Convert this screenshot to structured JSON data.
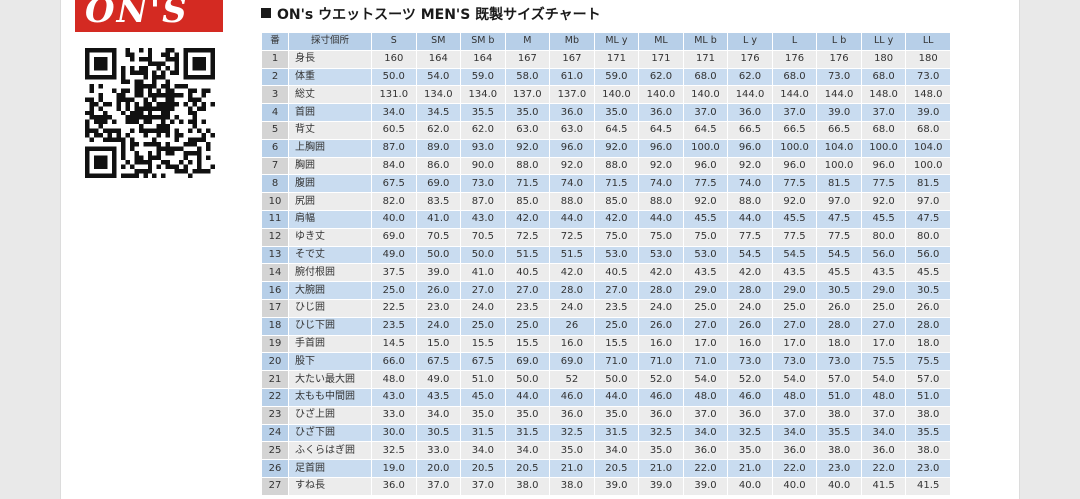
{
  "logo": {
    "text": "ON'S",
    "color": "#d42a22"
  },
  "title": "ON's ウエットスーツ MEN'S 既製サイズチャート",
  "table": {
    "headers": [
      "番",
      "採寸個所",
      "S",
      "SM",
      "SM b",
      "M",
      "Mb",
      "ML y",
      "ML",
      "ML b",
      "L y",
      "L",
      "L b",
      "LL y",
      "LL"
    ],
    "rows": [
      [
        "1",
        "身長",
        "160",
        "164",
        "164",
        "167",
        "167",
        "171",
        "171",
        "171",
        "176",
        "176",
        "176",
        "180",
        "180"
      ],
      [
        "2",
        "体重",
        "50.0",
        "54.0",
        "59.0",
        "58.0",
        "61.0",
        "59.0",
        "62.0",
        "68.0",
        "62.0",
        "68.0",
        "73.0",
        "68.0",
        "73.0"
      ],
      [
        "3",
        "総丈",
        "131.0",
        "134.0",
        "134.0",
        "137.0",
        "137.0",
        "140.0",
        "140.0",
        "140.0",
        "144.0",
        "144.0",
        "144.0",
        "148.0",
        "148.0"
      ],
      [
        "4",
        "首囲",
        "34.0",
        "34.5",
        "35.5",
        "35.0",
        "36.0",
        "35.0",
        "36.0",
        "37.0",
        "36.0",
        "37.0",
        "39.0",
        "37.0",
        "39.0"
      ],
      [
        "5",
        "背丈",
        "60.5",
        "62.0",
        "62.0",
        "63.0",
        "63.0",
        "64.5",
        "64.5",
        "64.5",
        "66.5",
        "66.5",
        "66.5",
        "68.0",
        "68.0"
      ],
      [
        "6",
        "上胸囲",
        "87.0",
        "89.0",
        "93.0",
        "92.0",
        "96.0",
        "92.0",
        "96.0",
        "100.0",
        "96.0",
        "100.0",
        "104.0",
        "100.0",
        "104.0"
      ],
      [
        "7",
        "胸囲",
        "84.0",
        "86.0",
        "90.0",
        "88.0",
        "92.0",
        "88.0",
        "92.0",
        "96.0",
        "92.0",
        "96.0",
        "100.0",
        "96.0",
        "100.0"
      ],
      [
        "8",
        "腹囲",
        "67.5",
        "69.0",
        "73.0",
        "71.5",
        "74.0",
        "71.5",
        "74.0",
        "77.5",
        "74.0",
        "77.5",
        "81.5",
        "77.5",
        "81.5"
      ],
      [
        "10",
        "尻囲",
        "82.0",
        "83.5",
        "87.0",
        "85.0",
        "88.0",
        "85.0",
        "88.0",
        "92.0",
        "88.0",
        "92.0",
        "97.0",
        "92.0",
        "97.0"
      ],
      [
        "11",
        "肩幅",
        "40.0",
        "41.0",
        "43.0",
        "42.0",
        "44.0",
        "42.0",
        "44.0",
        "45.5",
        "44.0",
        "45.5",
        "47.5",
        "45.5",
        "47.5"
      ],
      [
        "12",
        "ゆき丈",
        "69.0",
        "70.5",
        "70.5",
        "72.5",
        "72.5",
        "75.0",
        "75.0",
        "75.0",
        "77.5",
        "77.5",
        "77.5",
        "80.0",
        "80.0"
      ],
      [
        "13",
        "そで丈",
        "49.0",
        "50.0",
        "50.0",
        "51.5",
        "51.5",
        "53.0",
        "53.0",
        "53.0",
        "54.5",
        "54.5",
        "54.5",
        "56.0",
        "56.0"
      ],
      [
        "14",
        "腕付根囲",
        "37.5",
        "39.0",
        "41.0",
        "40.5",
        "42.0",
        "40.5",
        "42.0",
        "43.5",
        "42.0",
        "43.5",
        "45.5",
        "43.5",
        "45.5"
      ],
      [
        "16",
        "大腕囲",
        "25.0",
        "26.0",
        "27.0",
        "27.0",
        "28.0",
        "27.0",
        "28.0",
        "29.0",
        "28.0",
        "29.0",
        "30.5",
        "29.0",
        "30.5"
      ],
      [
        "17",
        "ひじ囲",
        "22.5",
        "23.0",
        "24.0",
        "23.5",
        "24.0",
        "23.5",
        "24.0",
        "25.0",
        "24.0",
        "25.0",
        "26.0",
        "25.0",
        "26.0"
      ],
      [
        "18",
        "ひじ下囲",
        "23.5",
        "24.0",
        "25.0",
        "25.0",
        "26",
        "25.0",
        "26.0",
        "27.0",
        "26.0",
        "27.0",
        "28.0",
        "27.0",
        "28.0"
      ],
      [
        "19",
        "手首囲",
        "14.5",
        "15.0",
        "15.5",
        "15.5",
        "16.0",
        "15.5",
        "16.0",
        "17.0",
        "16.0",
        "17.0",
        "18.0",
        "17.0",
        "18.0"
      ],
      [
        "20",
        "股下",
        "66.0",
        "67.5",
        "67.5",
        "69.0",
        "69.0",
        "71.0",
        "71.0",
        "71.0",
        "73.0",
        "73.0",
        "73.0",
        "75.5",
        "75.5"
      ],
      [
        "21",
        "大たい最大囲",
        "48.0",
        "49.0",
        "51.0",
        "50.0",
        "52",
        "50.0",
        "52.0",
        "54.0",
        "52.0",
        "54.0",
        "57.0",
        "54.0",
        "57.0"
      ],
      [
        "22",
        "太もも中間囲",
        "43.0",
        "43.5",
        "45.0",
        "44.0",
        "46.0",
        "44.0",
        "46.0",
        "48.0",
        "46.0",
        "48.0",
        "51.0",
        "48.0",
        "51.0"
      ],
      [
        "23",
        "ひざ上囲",
        "33.0",
        "34.0",
        "35.0",
        "35.0",
        "36.0",
        "35.0",
        "36.0",
        "37.0",
        "36.0",
        "37.0",
        "38.0",
        "37.0",
        "38.0"
      ],
      [
        "24",
        "ひざ下囲",
        "30.0",
        "30.5",
        "31.5",
        "31.5",
        "32.5",
        "31.5",
        "32.5",
        "34.0",
        "32.5",
        "34.0",
        "35.5",
        "34.0",
        "35.5"
      ],
      [
        "25",
        "ふくらはぎ囲",
        "32.5",
        "33.0",
        "34.0",
        "34.0",
        "35.0",
        "34.0",
        "35.0",
        "36.0",
        "35.0",
        "36.0",
        "38.0",
        "36.0",
        "38.0"
      ],
      [
        "26",
        "足首囲",
        "19.0",
        "20.0",
        "20.5",
        "20.5",
        "21.0",
        "20.5",
        "21.0",
        "22.0",
        "21.0",
        "22.0",
        "23.0",
        "22.0",
        "23.0"
      ],
      [
        "27",
        "すね長",
        "36.0",
        "37.0",
        "37.0",
        "38.0",
        "38.0",
        "39.0",
        "39.0",
        "39.0",
        "40.0",
        "40.0",
        "40.0",
        "41.5",
        "41.5"
      ]
    ]
  }
}
